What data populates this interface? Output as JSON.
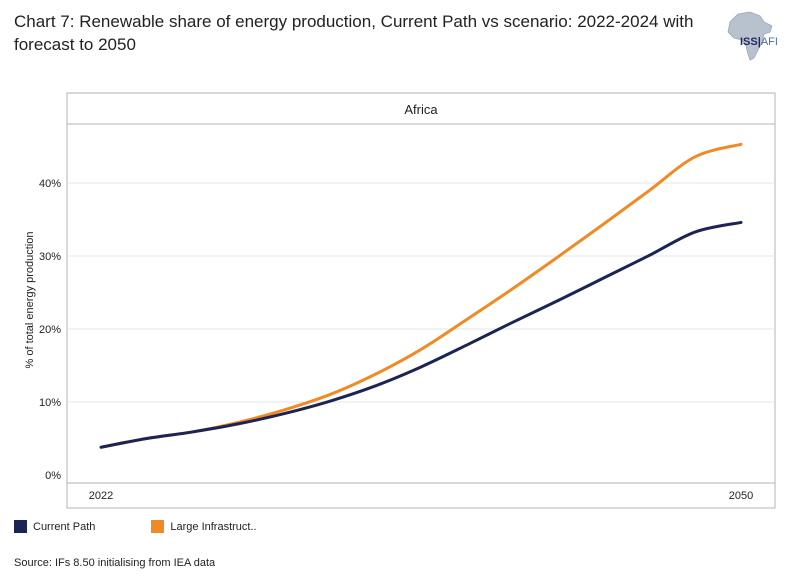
{
  "title": "Chart 7: Renewable share of energy production, Current Path vs scenario: 2022-2024 with forecast to 2050",
  "logo": {
    "main": "ISS",
    "sub": "AFI"
  },
  "source": "Source: IFs 8.50 initialising from IEA data",
  "colors": {
    "current_path": "#1c2454",
    "large_infra": "#f08a24",
    "grid": "#d9d9d9",
    "frame": "#b3b3b3"
  },
  "chart_data": {
    "type": "line",
    "panel_title": "Africa",
    "ylabel": "% of total energy production",
    "xlabel": "",
    "xlim": [
      2022,
      2050
    ],
    "ylim": [
      0,
      45
    ],
    "x_ticks": [
      2022,
      2050
    ],
    "y_ticks": [
      0,
      10,
      20,
      30,
      40
    ],
    "y_tick_labels": [
      "0%",
      "10%",
      "20%",
      "30%",
      "40%"
    ],
    "legend_position": "bottom-left",
    "x": [
      2022,
      2024,
      2026,
      2028,
      2030,
      2032,
      2034,
      2036,
      2038,
      2040,
      2042,
      2044,
      2046,
      2048,
      2050
    ],
    "series": [
      {
        "name": "Current Path",
        "color": "#1c2454",
        "values": [
          3.8,
          5.0,
          5.9,
          7.0,
          8.4,
          10.1,
          12.2,
          14.8,
          17.8,
          20.9,
          23.9,
          27.0,
          30.1,
          33.3,
          34.6
        ]
      },
      {
        "name": "Large Infrastruct..",
        "color": "#f08a24",
        "values": [
          3.8,
          5.0,
          5.9,
          7.2,
          8.9,
          11.0,
          13.8,
          17.2,
          21.3,
          25.5,
          29.9,
          34.4,
          39.0,
          43.6,
          45.3
        ]
      }
    ]
  }
}
